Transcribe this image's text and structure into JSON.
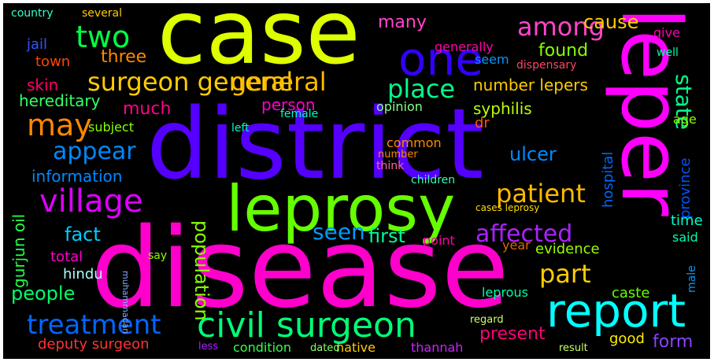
{
  "background": "#000000",
  "palette": [
    "#ff00ff",
    "#5500ff",
    "#ccff00",
    "#00ffcc",
    "#00ff33",
    "#ff8800",
    "#0055ff",
    "#ff0077",
    "#aa00ff"
  ],
  "words": [
    {
      "text": "district",
      "color": "#5500ff"
    },
    {
      "text": "disease",
      "color": "#ff00cc"
    },
    {
      "text": "case",
      "color": "#ddff00"
    },
    {
      "text": "leper",
      "color": "#ff00ff"
    },
    {
      "text": "leprosy",
      "color": "#66ff00"
    },
    {
      "text": "one",
      "color": "#3300ff"
    },
    {
      "text": "report",
      "color": "#00ffff"
    },
    {
      "text": "civil surgeon",
      "color": "#00ff77"
    },
    {
      "text": "two",
      "color": "#00ff44"
    },
    {
      "text": "surgeon general",
      "color": "#ffcc00"
    },
    {
      "text": "general",
      "color": "#ffbb00"
    },
    {
      "text": "may",
      "color": "#ff8800"
    },
    {
      "text": "village",
      "color": "#dd00ff"
    },
    {
      "text": "treatment",
      "color": "#0066ff"
    },
    {
      "text": "patient",
      "color": "#ffbb00"
    },
    {
      "text": "appear",
      "color": "#0088ff"
    },
    {
      "text": "place",
      "color": "#00ff88"
    },
    {
      "text": "part",
      "color": "#ffcc00"
    },
    {
      "text": "affected",
      "color": "#aa22ff"
    },
    {
      "text": "among",
      "color": "#ff44cc"
    },
    {
      "text": "state",
      "color": "#00ff88"
    },
    {
      "text": "seen",
      "color": "#0099ff"
    },
    {
      "text": "first",
      "color": "#00ff99"
    },
    {
      "text": "people",
      "color": "#00ff66"
    },
    {
      "text": "fact",
      "color": "#00ccff"
    },
    {
      "text": "cause",
      "color": "#ffcc00"
    },
    {
      "text": "three",
      "color": "#ff8800"
    },
    {
      "text": "found",
      "color": "#88ff00"
    },
    {
      "text": "skin",
      "color": "#ff0066"
    },
    {
      "text": "hereditary",
      "color": "#33ff66"
    },
    {
      "text": "much",
      "color": "#ff0088"
    },
    {
      "text": "information",
      "color": "#0088ff"
    },
    {
      "text": "syphilis",
      "color": "#bbff00"
    },
    {
      "text": "ulcer",
      "color": "#0088ff"
    },
    {
      "text": "number lepers",
      "color": "#ffcc00"
    },
    {
      "text": "many",
      "color": "#ff44cc"
    },
    {
      "text": "town",
      "color": "#ff4400"
    },
    {
      "text": "person",
      "color": "#ff00cc"
    },
    {
      "text": "population",
      "color": "#88ff00"
    },
    {
      "text": "gurjun oil",
      "color": "#22ff44"
    },
    {
      "text": "deputy surgeon",
      "color": "#ff3333"
    },
    {
      "text": "present",
      "color": "#ff0077"
    },
    {
      "text": "form",
      "color": "#8844ff"
    },
    {
      "text": "caste",
      "color": "#66ff00"
    },
    {
      "text": "hospital",
      "color": "#0066ff"
    },
    {
      "text": "province",
      "color": "#0055ff"
    },
    {
      "text": "evidence",
      "color": "#99ff00"
    },
    {
      "text": "time",
      "color": "#00ffcc"
    },
    {
      "text": "said",
      "color": "#00ffaa"
    },
    {
      "text": "good",
      "color": "#ffee00"
    },
    {
      "text": "hindu",
      "color": "#aaffff"
    },
    {
      "text": "total",
      "color": "#ff00cc"
    },
    {
      "text": "year",
      "color": "#dd6600"
    },
    {
      "text": "point",
      "color": "#ff00aa"
    },
    {
      "text": "jail",
      "color": "#3355ff"
    },
    {
      "text": "subject",
      "color": "#88ff00"
    },
    {
      "text": "dr",
      "color": "#ff5500"
    },
    {
      "text": "opinion",
      "color": "#88ff88"
    },
    {
      "text": "age",
      "color": "#88ff00"
    },
    {
      "text": "common",
      "color": "#ff8800"
    },
    {
      "text": "condition",
      "color": "#33ff44"
    },
    {
      "text": "native",
      "color": "#ffcc00"
    },
    {
      "text": "thannah",
      "color": "#cc22ff"
    },
    {
      "text": "generally",
      "color": "#ff00aa"
    },
    {
      "text": "seem",
      "color": "#0099ff"
    },
    {
      "text": "country",
      "color": "#33ffcc"
    },
    {
      "text": "several",
      "color": "#ffcc00"
    },
    {
      "text": "give",
      "color": "#ff00aa"
    },
    {
      "text": "well",
      "color": "#00ffaa"
    },
    {
      "text": "female",
      "color": "#00ffcc"
    },
    {
      "text": "left",
      "color": "#00ffcc"
    },
    {
      "text": "say",
      "color": "#88ff00"
    },
    {
      "text": "leprous",
      "color": "#00ffaa"
    },
    {
      "text": "children",
      "color": "#33ffaa"
    },
    {
      "text": "male",
      "color": "#0099ff"
    },
    {
      "text": "dispensary",
      "color": "#ff4466"
    },
    {
      "text": "cases leprosy",
      "color": "#ffdd00"
    },
    {
      "text": "regard",
      "color": "#ccff66"
    },
    {
      "text": "result",
      "color": "#ccff66"
    },
    {
      "text": "muhammadan",
      "color": "#88aaff"
    },
    {
      "text": "dated",
      "color": "#88ff66"
    },
    {
      "text": "less",
      "color": "#aa22ff"
    },
    {
      "text": "think",
      "color": "#ff66aa"
    },
    {
      "text": "number",
      "color": "#ff8800"
    }
  ]
}
